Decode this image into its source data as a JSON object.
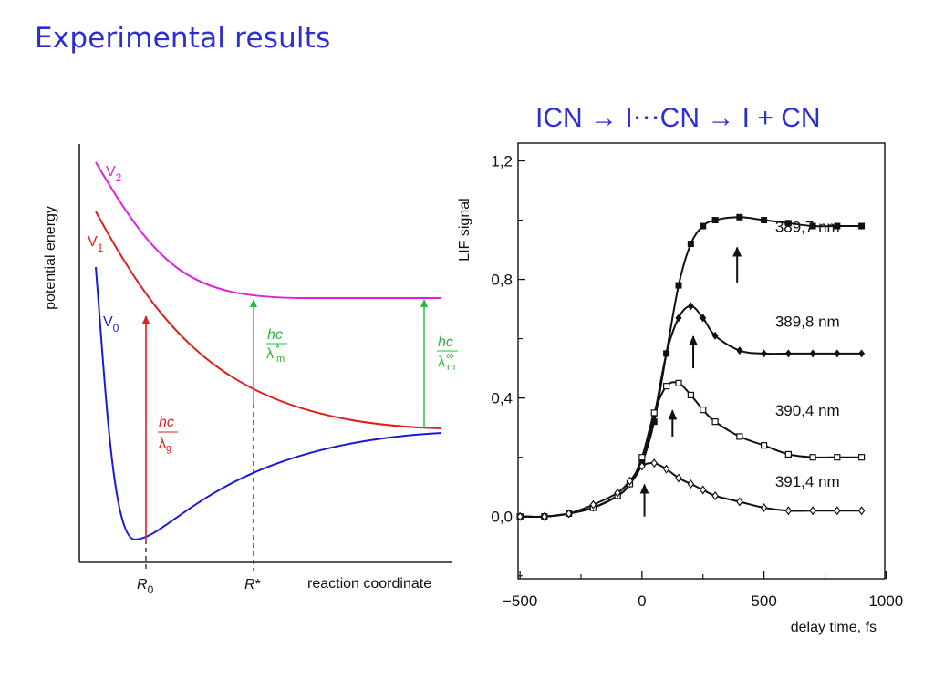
{
  "slide": {
    "title": "Experimental results",
    "reaction_label": "ICN → I⋯CN → I + CN"
  },
  "colors": {
    "title": "#2d2dd6",
    "V0": "#1a1ad6",
    "V1": "#e01e1e",
    "V2": "#e020e0",
    "excitation_ground": "#e01e1e",
    "excitation_green": "#2ab83a"
  },
  "chart_data": [
    {
      "type": "line",
      "title": "",
      "xlabel": "reaction coordinate",
      "ylabel": "potential energy",
      "x_ticks": [
        {
          "label": "R",
          "sub": "0"
        },
        {
          "label": "R",
          "sup": "*"
        }
      ],
      "series": [
        {
          "name": "V",
          "sub": "0",
          "shape": "bound well: steep repulsive wall, minimum near R0, rising to a plateau"
        },
        {
          "name": "V",
          "sub": "1",
          "shape": "repulsive, decaying to an asymptote"
        },
        {
          "name": "V",
          "sub": "2",
          "shape": "repulsive, decaying to an asymptote"
        }
      ],
      "annotations": [
        {
          "numerator": "hc",
          "denominator": "λ",
          "sub": "g",
          "from": "V0",
          "to": "V1",
          "at": "R0"
        },
        {
          "numerator": "hc",
          "denominator": "λ",
          "sub": "m",
          "sup": "*",
          "from": "V1",
          "to": "V2",
          "at": "R*"
        },
        {
          "numerator": "hc",
          "denominator": "λ",
          "sub": "m",
          "sup": "∞",
          "from": "V1",
          "to": "V2",
          "at": "asymptote"
        }
      ]
    },
    {
      "type": "scatter",
      "title": "",
      "xlabel": "delay time, fs",
      "ylabel": "LIF signal",
      "xlim": [
        -500,
        1000
      ],
      "ylim": [
        -0.2,
        1.2
      ],
      "x_ticks": [
        -500,
        0,
        500,
        1000
      ],
      "x_tick_labels": [
        "−500",
        "0",
        "500",
        "1000"
      ],
      "y_ticks": [
        0.0,
        0.4,
        0.8,
        1.2
      ],
      "y_tick_labels": [
        "0,0",
        "0,4",
        "0,8",
        "1,2"
      ],
      "series": [
        {
          "name": "389,7 nm",
          "marker": "filled-square",
          "x": [
            -500,
            -400,
            -300,
            -200,
            -100,
            -50,
            0,
            50,
            100,
            150,
            200,
            250,
            300,
            400,
            500,
            600,
            700,
            800,
            900
          ],
          "y": [
            0.0,
            0.0,
            0.01,
            0.03,
            0.07,
            0.11,
            0.18,
            0.32,
            0.55,
            0.78,
            0.92,
            0.98,
            1.0,
            1.01,
            1.0,
            0.99,
            0.98,
            0.98,
            0.98
          ],
          "arrow": {
            "x": 390,
            "y_tip": 0.92,
            "y_tail": 0.79
          }
        },
        {
          "name": "389,8 nm",
          "marker": "filled-diamond",
          "x": [
            -500,
            -400,
            -300,
            -200,
            -100,
            -50,
            0,
            50,
            100,
            150,
            200,
            250,
            300,
            400,
            500,
            600,
            700,
            800,
            900
          ],
          "y": [
            0.0,
            0.0,
            0.01,
            0.03,
            0.07,
            0.11,
            0.18,
            0.34,
            0.55,
            0.67,
            0.71,
            0.67,
            0.61,
            0.56,
            0.55,
            0.55,
            0.55,
            0.55,
            0.55
          ],
          "arrow": {
            "x": 210,
            "y_tip": 0.62,
            "y_tail": 0.5
          }
        },
        {
          "name": "390,4 nm",
          "marker": "open-square",
          "x": [
            -500,
            -400,
            -300,
            -200,
            -100,
            -50,
            0,
            50,
            100,
            150,
            200,
            250,
            300,
            400,
            500,
            600,
            700,
            800,
            900
          ],
          "y": [
            0.0,
            0.0,
            0.01,
            0.03,
            0.07,
            0.11,
            0.2,
            0.35,
            0.44,
            0.45,
            0.41,
            0.36,
            0.32,
            0.27,
            0.24,
            0.21,
            0.2,
            0.2,
            0.2
          ],
          "arrow": {
            "x": 125,
            "y_tip": 0.37,
            "y_tail": 0.27
          }
        },
        {
          "name": "391,4 nm",
          "marker": "open-diamond",
          "x": [
            -500,
            -400,
            -300,
            -200,
            -100,
            -50,
            0,
            50,
            100,
            150,
            200,
            250,
            300,
            400,
            500,
            600,
            700,
            800,
            900
          ],
          "y": [
            0.0,
            0.0,
            0.01,
            0.04,
            0.08,
            0.12,
            0.17,
            0.18,
            0.16,
            0.13,
            0.11,
            0.09,
            0.07,
            0.05,
            0.03,
            0.02,
            0.02,
            0.02,
            0.02
          ],
          "arrow": {
            "x": 10,
            "y_tip": 0.12,
            "y_tail": 0.0
          }
        }
      ]
    }
  ]
}
